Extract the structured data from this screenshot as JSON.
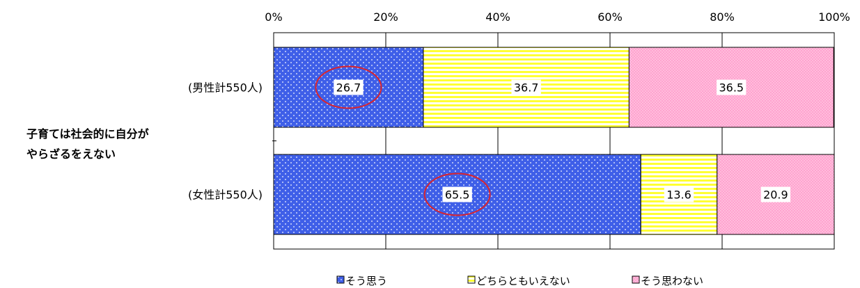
{
  "chart_data": {
    "type": "bar",
    "orientation": "horizontal",
    "stacked": true,
    "percent": true,
    "group_label": [
      "子育ては社会的に自分が",
      "やらざるをえない"
    ],
    "categories": [
      "(男性計550人)",
      "(女性計550人)"
    ],
    "series": [
      {
        "name": "そう思う",
        "values": [
          26.7,
          65.5
        ],
        "color": "#3f5fe8",
        "pattern": "dots"
      },
      {
        "name": "どちらともいえない",
        "values": [
          36.7,
          13.6
        ],
        "color": "#ffff33",
        "pattern": "horizontal-stripes"
      },
      {
        "name": "そう思わない",
        "values": [
          36.5,
          20.9
        ],
        "color": "#ffa3cf",
        "pattern": "fine-dots"
      }
    ],
    "xlim": [
      0,
      100
    ],
    "x_ticks": [
      "0%",
      "20%",
      "40%",
      "60%",
      "80%",
      "100%"
    ],
    "grid": true,
    "legend": "bottom",
    "highlight": {
      "series_index": 0,
      "annotation": "red-ellipse",
      "color": "#d9232d"
    }
  }
}
